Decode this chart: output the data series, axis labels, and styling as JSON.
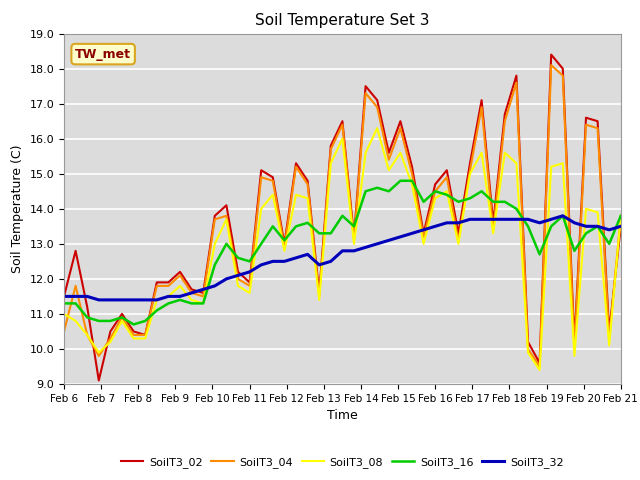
{
  "title": "Soil Temperature Set 3",
  "xlabel": "Time",
  "ylabel": "Soil Temperature (C)",
  "ylim": [
    9.0,
    19.0
  ],
  "yticks": [
    9.0,
    10.0,
    11.0,
    12.0,
    13.0,
    14.0,
    15.0,
    16.0,
    17.0,
    18.0,
    19.0
  ],
  "xtick_labels": [
    "Feb 6",
    "Feb 7",
    "Feb 8",
    "Feb 9",
    "Feb 10",
    "Feb 11",
    "Feb 12",
    "Feb 13",
    "Feb 14",
    "Feb 15",
    "Feb 16",
    "Feb 17",
    "Feb 18",
    "Feb 19",
    "Feb 20",
    "Feb 21"
  ],
  "annotation_text": "TW_met",
  "annotation_color": "#8B0000",
  "annotation_bg": "#FFFFCC",
  "annotation_border": "#DAA520",
  "plot_bg_color": "#DCDCDC",
  "fig_bg_color": "#FFFFFF",
  "grid_color": "#FFFFFF",
  "series_names": [
    "SoilT3_02",
    "SoilT3_04",
    "SoilT3_08",
    "SoilT3_16",
    "SoilT3_32"
  ],
  "series_colors": [
    "#CC0000",
    "#FF8C00",
    "#FFFF00",
    "#00CC00",
    "#0000BB"
  ],
  "series_linewidths": [
    1.5,
    1.5,
    1.5,
    1.8,
    2.2
  ],
  "series_values": {
    "SoilT3_02": [
      11.5,
      12.8,
      11.2,
      9.1,
      10.5,
      11.0,
      10.5,
      10.4,
      11.9,
      11.9,
      12.2,
      11.7,
      11.6,
      13.8,
      14.1,
      12.2,
      11.9,
      15.1,
      14.9,
      13.0,
      15.3,
      14.8,
      11.6,
      15.8,
      16.5,
      13.2,
      17.5,
      17.1,
      15.6,
      16.5,
      15.2,
      13.3,
      14.7,
      15.1,
      13.3,
      15.3,
      17.1,
      13.6,
      16.7,
      17.8,
      10.2,
      9.6,
      18.4,
      18.0,
      10.2,
      16.6,
      16.5,
      10.5,
      13.5
    ],
    "SoilT3_04": [
      10.5,
      11.8,
      10.4,
      9.8,
      10.3,
      10.9,
      10.4,
      10.4,
      11.8,
      11.8,
      12.1,
      11.6,
      11.5,
      13.7,
      13.8,
      12.0,
      11.8,
      14.9,
      14.8,
      12.9,
      15.2,
      14.7,
      11.5,
      15.7,
      16.4,
      13.1,
      17.3,
      16.9,
      15.4,
      16.3,
      15.0,
      13.2,
      14.5,
      14.9,
      13.1,
      15.1,
      16.9,
      13.4,
      16.5,
      17.6,
      10.0,
      9.5,
      18.1,
      17.8,
      10.0,
      16.4,
      16.3,
      10.3,
      13.8
    ],
    "SoilT3_08": [
      11.0,
      10.8,
      10.4,
      9.9,
      10.2,
      10.8,
      10.3,
      10.3,
      11.4,
      11.5,
      11.8,
      11.4,
      11.3,
      13.0,
      13.7,
      11.8,
      11.6,
      14.0,
      14.4,
      12.8,
      14.4,
      14.3,
      11.4,
      15.3,
      16.0,
      13.0,
      15.6,
      16.3,
      15.1,
      15.6,
      14.7,
      13.0,
      14.3,
      14.5,
      13.0,
      15.0,
      15.6,
      13.3,
      15.6,
      15.3,
      9.9,
      9.4,
      15.2,
      15.3,
      9.8,
      14.0,
      13.9,
      10.1,
      13.8
    ],
    "SoilT3_16": [
      11.3,
      11.3,
      10.9,
      10.8,
      10.8,
      10.9,
      10.7,
      10.8,
      11.1,
      11.3,
      11.4,
      11.3,
      11.3,
      12.4,
      13.0,
      12.6,
      12.5,
      13.0,
      13.5,
      13.1,
      13.5,
      13.6,
      13.3,
      13.3,
      13.8,
      13.5,
      14.5,
      14.6,
      14.5,
      14.8,
      14.8,
      14.2,
      14.5,
      14.4,
      14.2,
      14.3,
      14.5,
      14.2,
      14.2,
      14.0,
      13.5,
      12.7,
      13.5,
      13.8,
      12.8,
      13.3,
      13.5,
      13.0,
      13.8
    ],
    "SoilT3_32": [
      11.5,
      11.5,
      11.5,
      11.4,
      11.4,
      11.4,
      11.4,
      11.4,
      11.4,
      11.5,
      11.5,
      11.6,
      11.7,
      11.8,
      12.0,
      12.1,
      12.2,
      12.4,
      12.5,
      12.5,
      12.6,
      12.7,
      12.4,
      12.5,
      12.8,
      12.8,
      12.9,
      13.0,
      13.1,
      13.2,
      13.3,
      13.4,
      13.5,
      13.6,
      13.6,
      13.7,
      13.7,
      13.7,
      13.7,
      13.7,
      13.7,
      13.6,
      13.7,
      13.8,
      13.6,
      13.5,
      13.5,
      13.4,
      13.5
    ]
  }
}
